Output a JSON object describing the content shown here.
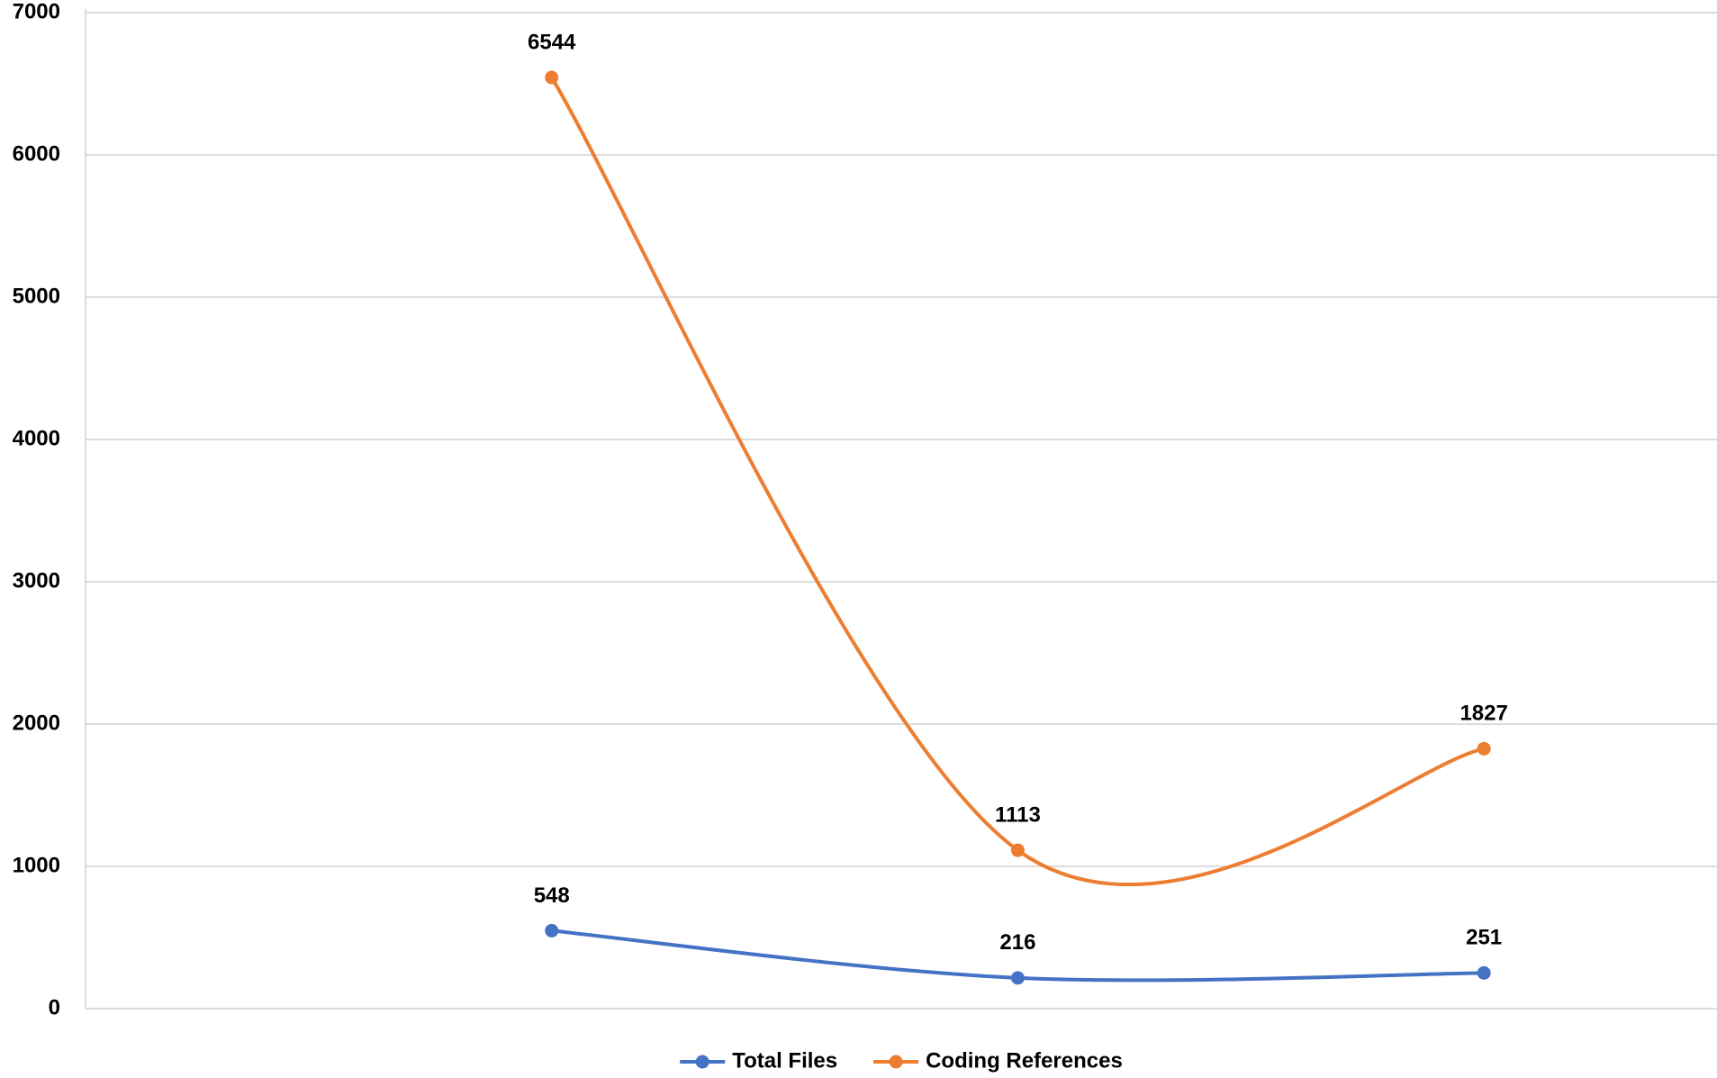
{
  "chart_data": {
    "type": "line",
    "smooth": true,
    "categories": [
      null,
      null,
      null
    ],
    "series": [
      {
        "name": "Total Files",
        "color": "#4472c4",
        "values": [
          548,
          216,
          251
        ]
      },
      {
        "name": "Coding References",
        "color": "#ed7d31",
        "values": [
          6544,
          1113,
          1827
        ]
      }
    ],
    "ylim": [
      0,
      7000
    ],
    "yticks": [
      0,
      1000,
      2000,
      3000,
      4000,
      5000,
      6000,
      7000
    ],
    "grid": true,
    "legend": "bottom",
    "data_labels": true
  }
}
